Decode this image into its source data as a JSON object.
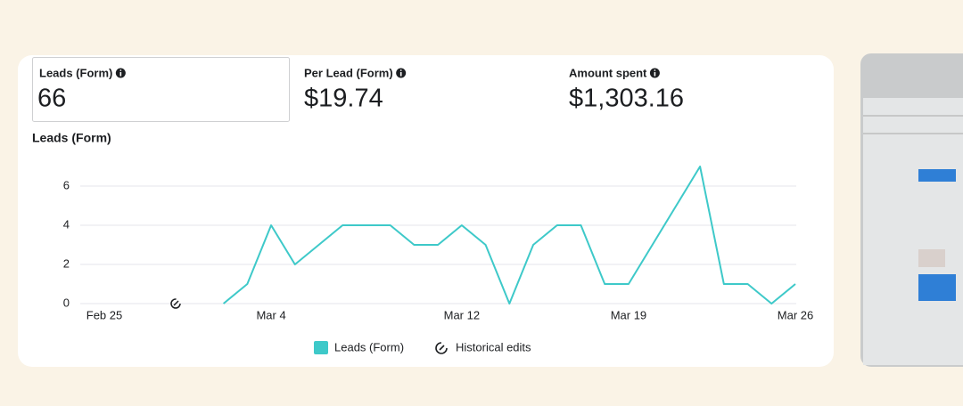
{
  "metrics": [
    {
      "label": "Leads (Form)",
      "value": "66"
    },
    {
      "label": "Per Lead (Form)",
      "value": "$19.74"
    },
    {
      "label": "Amount spent",
      "value": "$1,303.16"
    }
  ],
  "chart_data": {
    "type": "line",
    "title": "Leads (Form)",
    "categories": [
      "Feb 25",
      null,
      null,
      null,
      null,
      null,
      null,
      "Mar 4",
      null,
      null,
      null,
      null,
      null,
      null,
      null,
      "Mar 12",
      null,
      null,
      null,
      null,
      null,
      null,
      "Mar 19",
      null,
      null,
      null,
      null,
      null,
      null,
      "Mar 26"
    ],
    "series": [
      {
        "name": "Leads (Form)",
        "color": "#3ec9c9",
        "values": [
          null,
          null,
          null,
          null,
          null,
          0,
          1,
          4,
          2,
          3,
          4,
          4,
          4,
          3,
          3,
          4,
          3,
          0,
          3,
          4,
          4,
          1,
          1,
          3,
          5,
          7,
          1,
          1,
          0,
          1
        ]
      }
    ],
    "historical_edits_label": "Historical edits",
    "ylim": [
      0,
      7
    ],
    "yticks": [
      0,
      2,
      4,
      6
    ],
    "grid": true
  }
}
